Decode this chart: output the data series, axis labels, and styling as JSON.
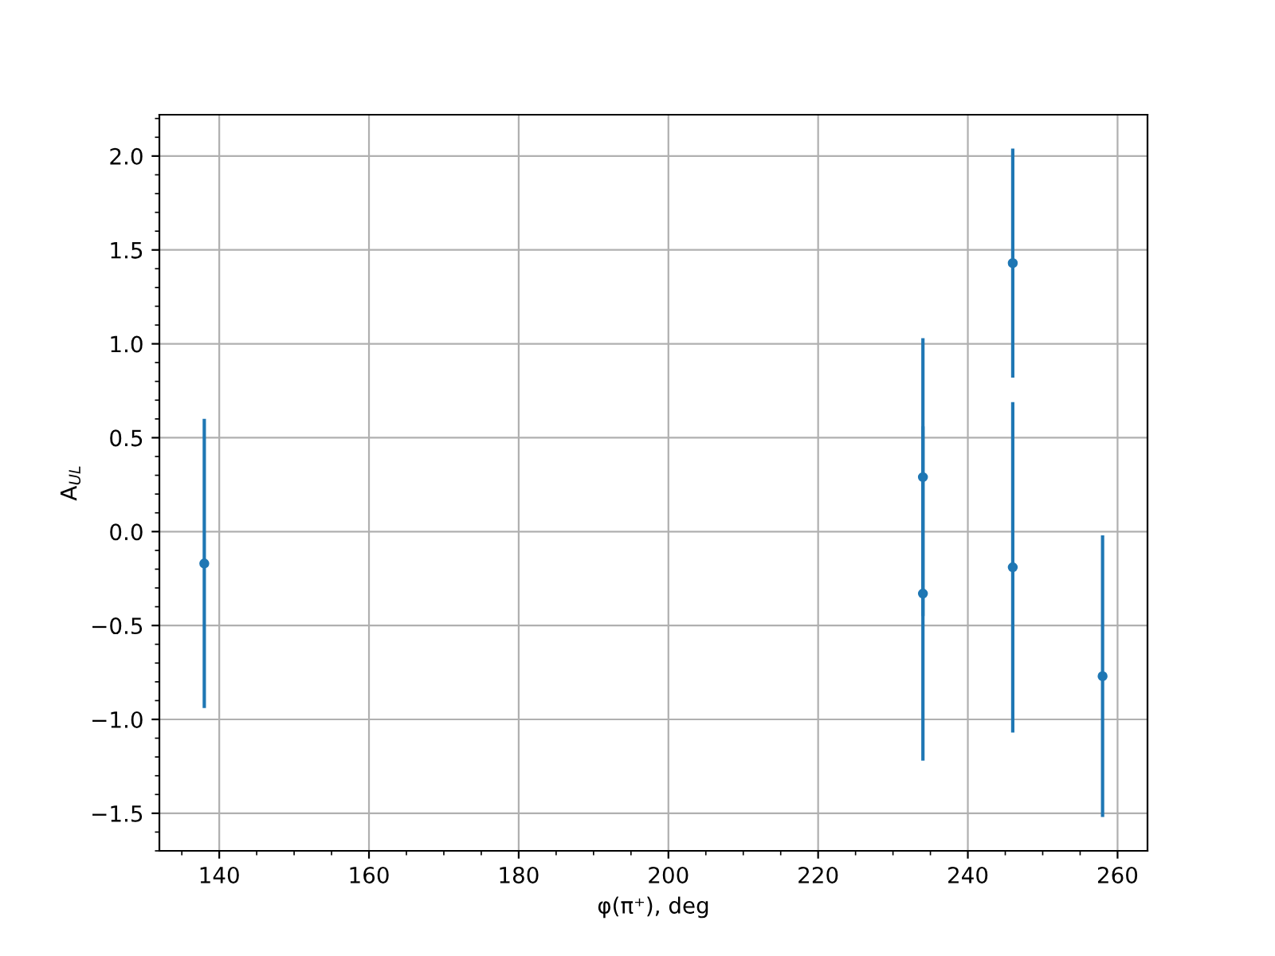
{
  "chart_data": {
    "type": "scatter",
    "xlabel": "φ(π⁺), deg",
    "ylabel": "A$_{UL}$",
    "x": [
      138,
      234,
      234,
      246,
      246,
      258
    ],
    "series": [
      {
        "color": "#1f77b4",
        "values": [
          -0.17,
          0.29,
          -0.33,
          1.43,
          -0.19,
          -0.77
        ],
        "errors": [
          0.77,
          0.74,
          0.89,
          0.61,
          0.88,
          0.75
        ]
      }
    ],
    "xlim": [
      132,
      264
    ],
    "xticks": [
      140,
      160,
      180,
      200,
      220,
      240,
      260
    ],
    "ylim": [
      -1.7,
      2.22
    ],
    "yticks": [
      {
        "value": -1.5,
        "label": "−1.5"
      },
      {
        "value": -1,
        "label": "−1.0"
      },
      {
        "value": -0.5,
        "label": "−0.5"
      },
      {
        "value": 0,
        "label": "0.0"
      },
      {
        "value": 0.5,
        "label": "0.5"
      },
      {
        "value": 1,
        "label": "1.0"
      },
      {
        "value": 1.5,
        "label": "1.5"
      },
      {
        "value": 2,
        "label": "2.0"
      }
    ],
    "grid": true,
    "marker": "circle"
  }
}
